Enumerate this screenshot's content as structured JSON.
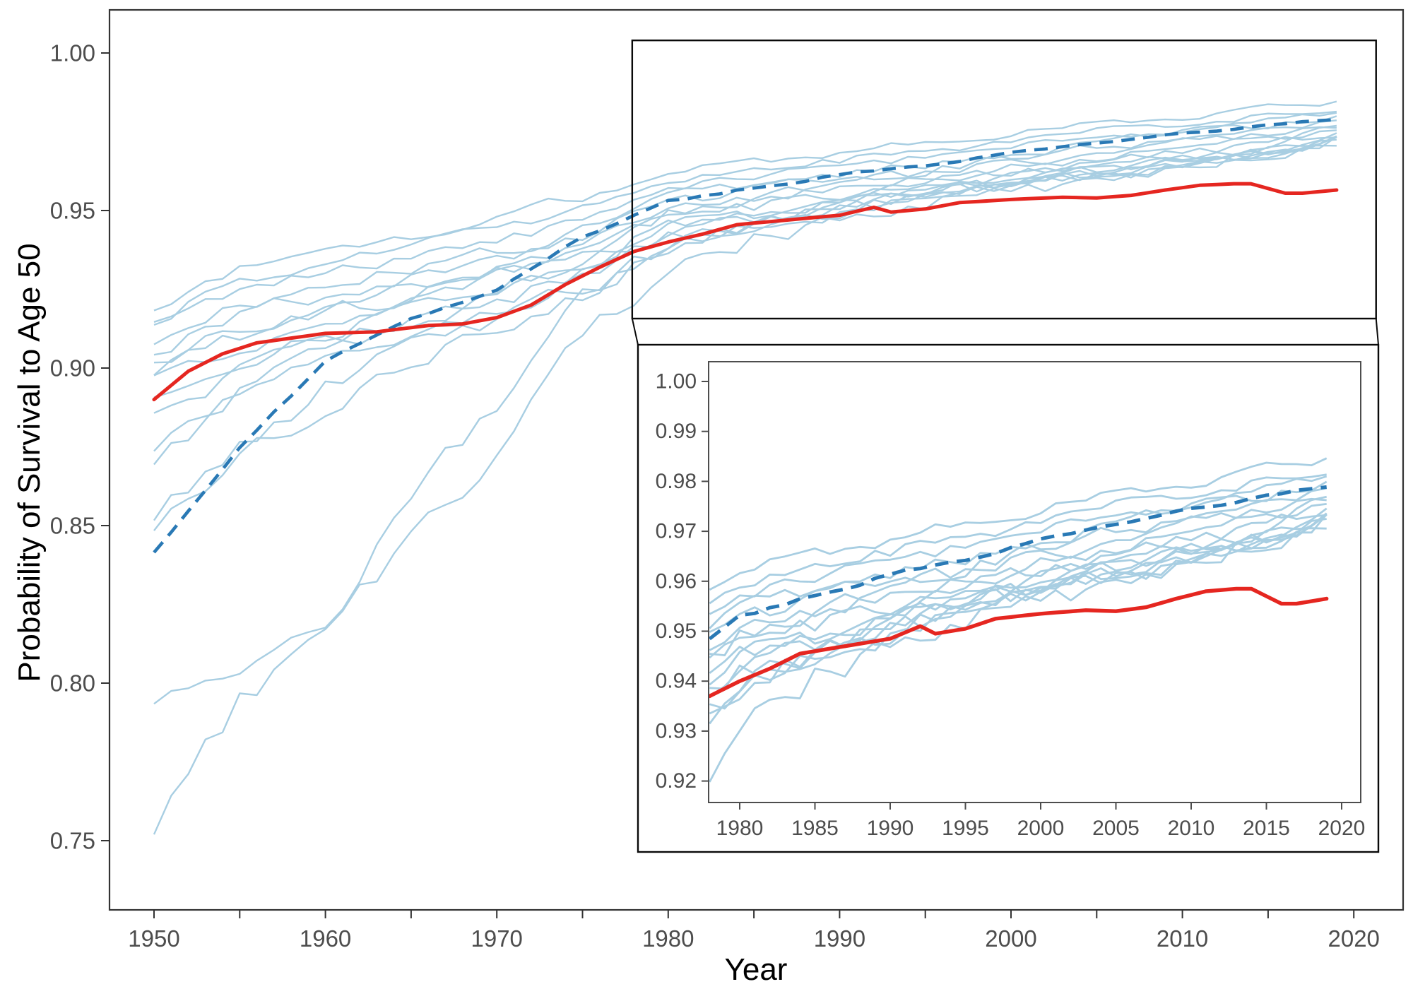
{
  "figure_title": "",
  "chart_data": {
    "type": "line",
    "title": "",
    "xlabel": "Year",
    "ylabel": "Probability of Survival to Age 50",
    "grid": false,
    "legend": "none",
    "main_axis": {
      "xlim": [
        1947.4,
        2022.9
      ],
      "ylim": [
        0.728,
        1.0137
      ],
      "x_major_tick_labels": [
        "1950",
        "1960",
        "1970",
        "1980",
        "1990",
        "2000",
        "2010",
        "2020"
      ],
      "x_minor_ticks": [
        1955,
        1965,
        1975,
        1985,
        1995,
        2005,
        2015
      ],
      "y_tick_labels": [
        "1.00",
        "0.95",
        "0.90",
        "0.85",
        "0.80",
        "0.75"
      ]
    },
    "inset_axis": {
      "xlim": [
        1977.9,
        2021.3
      ],
      "ylim": [
        0.9157,
        1.004
      ],
      "x_tick_labels": [
        "1980",
        "1985",
        "1990",
        "1995",
        "2000",
        "2005",
        "2010",
        "2015",
        "2020"
      ],
      "y_tick_labels": [
        "1.00",
        "0.99",
        "0.98",
        "0.97",
        "0.96",
        "0.95",
        "0.94",
        "0.93",
        "0.92"
      ]
    },
    "years_range": [
      1950,
      2019
    ],
    "anchor_years": [
      1950,
      1955,
      1960,
      1965,
      1970,
      1975,
      1980,
      1985,
      1990,
      1995,
      2000,
      2005,
      2010,
      2015,
      2019
    ],
    "comparator_series": [
      {
        "name": "comparator-01",
        "jitter": 0.0018,
        "anchors": [
          0.92,
          0.9315,
          0.9365,
          0.9415,
          0.948,
          0.954,
          0.9625,
          0.9655,
          0.9685,
          0.9715,
          0.975,
          0.9775,
          0.98,
          0.9825,
          0.9845
        ]
      },
      {
        "name": "comparator-02",
        "jitter": 0.002,
        "anchors": [
          0.915,
          0.928,
          0.9335,
          0.9385,
          0.9435,
          0.9495,
          0.9595,
          0.9625,
          0.966,
          0.969,
          0.9725,
          0.9755,
          0.978,
          0.9805,
          0.9825
        ]
      },
      {
        "name": "comparator-03",
        "jitter": 0.002,
        "anchors": [
          0.913,
          0.9245,
          0.93,
          0.935,
          0.94,
          0.9465,
          0.957,
          0.9605,
          0.964,
          0.967,
          0.9705,
          0.9735,
          0.976,
          0.9785,
          0.981
        ]
      },
      {
        "name": "comparator-04",
        "jitter": 0.0022,
        "anchors": [
          0.908,
          0.92,
          0.9265,
          0.932,
          0.937,
          0.944,
          0.9545,
          0.958,
          0.9615,
          0.965,
          0.9685,
          0.9715,
          0.9745,
          0.977,
          0.9795
        ]
      },
      {
        "name": "comparator-05",
        "jitter": 0.0025,
        "anchors": [
          0.905,
          0.9165,
          0.923,
          0.929,
          0.9345,
          0.9415,
          0.9525,
          0.956,
          0.9595,
          0.963,
          0.9665,
          0.97,
          0.973,
          0.9755,
          0.978
        ]
      },
      {
        "name": "comparator-06",
        "jitter": 0.0025,
        "anchors": [
          0.901,
          0.9125,
          0.92,
          0.9265,
          0.932,
          0.9395,
          0.9505,
          0.954,
          0.958,
          0.9615,
          0.965,
          0.9685,
          0.9715,
          0.974,
          0.977
        ]
      },
      {
        "name": "comparator-07",
        "jitter": 0.0028,
        "anchors": [
          0.8985,
          0.91,
          0.917,
          0.924,
          0.93,
          0.9375,
          0.949,
          0.9525,
          0.9565,
          0.96,
          0.9635,
          0.967,
          0.97,
          0.9725,
          0.9755
        ]
      },
      {
        "name": "comparator-08",
        "jitter": 0.0028,
        "anchors": [
          0.897,
          0.9075,
          0.9145,
          0.9215,
          0.928,
          0.936,
          0.9475,
          0.951,
          0.955,
          0.9585,
          0.962,
          0.9655,
          0.9685,
          0.971,
          0.974
        ]
      },
      {
        "name": "comparator-09",
        "jitter": 0.003,
        "anchors": [
          0.888,
          0.9035,
          0.9115,
          0.919,
          0.926,
          0.9345,
          0.946,
          0.9495,
          0.9535,
          0.957,
          0.9605,
          0.964,
          0.967,
          0.9695,
          0.9725
        ]
      },
      {
        "name": "comparator-10",
        "jitter": 0.003,
        "anchors": [
          0.885,
          0.9,
          0.909,
          0.917,
          0.9245,
          0.933,
          0.945,
          0.9485,
          0.9525,
          0.956,
          0.9595,
          0.963,
          0.966,
          0.9685,
          0.972
        ]
      },
      {
        "name": "comparator-11",
        "jitter": 0.0032,
        "anchors": [
          0.875,
          0.894,
          0.9055,
          0.914,
          0.9215,
          0.9305,
          0.9435,
          0.9475,
          0.9515,
          0.955,
          0.9585,
          0.962,
          0.9655,
          0.969,
          0.9735
        ]
      },
      {
        "name": "comparator-12",
        "jitter": 0.0032,
        "anchors": [
          0.872,
          0.89,
          0.902,
          0.9115,
          0.9195,
          0.929,
          0.9425,
          0.9465,
          0.951,
          0.9545,
          0.958,
          0.9615,
          0.965,
          0.9685,
          0.9745
        ]
      },
      {
        "name": "comparator-13",
        "jitter": 0.0035,
        "anchors": [
          0.852,
          0.876,
          0.8935,
          0.9055,
          0.915,
          0.926,
          0.9405,
          0.9455,
          0.95,
          0.954,
          0.9575,
          0.961,
          0.9645,
          0.968,
          0.973
        ]
      },
      {
        "name": "comparator-14",
        "jitter": 0.0035,
        "anchors": [
          0.848,
          0.87,
          0.889,
          0.902,
          0.9125,
          0.924,
          0.9385,
          0.944,
          0.949,
          0.9535,
          0.957,
          0.9605,
          0.964,
          0.9675,
          0.9725
        ]
      },
      {
        "name": "comparator-15",
        "jitter": 0.004,
        "anchors": [
          0.796,
          0.806,
          0.8225,
          0.856,
          0.888,
          0.9235,
          0.9385,
          0.9445,
          0.949,
          0.953,
          0.957,
          0.9605,
          0.964,
          0.9675,
          0.972
        ]
      },
      {
        "name": "comparator-16",
        "jitter": 0.0042,
        "anchors": [
          0.752,
          0.7935,
          0.8175,
          0.846,
          0.8735,
          0.9085,
          0.9295,
          0.9405,
          0.9475,
          0.952,
          0.956,
          0.96,
          0.9645,
          0.969,
          0.9755
        ]
      }
    ],
    "mean_series": {
      "name": "comparator-mean-dashed",
      "jitter": 0.0005,
      "anchors": [
        0.841,
        0.8755,
        0.902,
        0.9155,
        0.925,
        0.9415,
        0.953,
        0.957,
        0.9615,
        0.9645,
        0.9685,
        0.9715,
        0.9745,
        0.977,
        0.979
      ]
    },
    "usa_series": {
      "name": "usa",
      "years": [
        1950,
        1952,
        1954,
        1956,
        1958,
        1960,
        1963,
        1966,
        1968,
        1970,
        1972,
        1974,
        1976,
        1978,
        1980,
        1982,
        1984,
        1986,
        1988,
        1990,
        1992,
        1993,
        1995,
        1997,
        2000,
        2003,
        2005,
        2007,
        2009,
        2011,
        2013,
        2014,
        2016,
        2017,
        2018,
        2019
      ],
      "values": [
        0.89,
        0.899,
        0.9045,
        0.908,
        0.9095,
        0.911,
        0.9115,
        0.9135,
        0.914,
        0.916,
        0.92,
        0.9265,
        0.932,
        0.937,
        0.94,
        0.9425,
        0.9455,
        0.9465,
        0.9475,
        0.9485,
        0.951,
        0.9495,
        0.9505,
        0.9525,
        0.9535,
        0.9542,
        0.954,
        0.9548,
        0.9565,
        0.958,
        0.9585,
        0.9585,
        0.9555,
        0.9555,
        0.956,
        0.9565
      ]
    },
    "colors": {
      "comparator": "#a8cee2",
      "mean": "#2979b5",
      "usa": "#e52620",
      "tick_label": "#4d4d4d",
      "axis_label": "#000000",
      "panel_border": "#333333",
      "inset_panel_border": "#4d4d4d",
      "zoom_box": "#0a0a0a"
    }
  }
}
